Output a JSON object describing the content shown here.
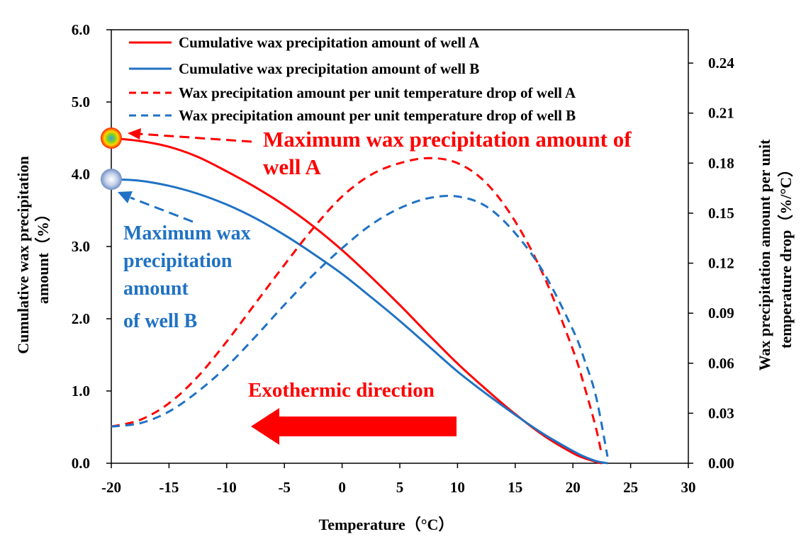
{
  "chart_data": {
    "type": "line",
    "x_axis": {
      "label": "Temperature（°C）",
      "range": [
        -20,
        30
      ],
      "ticks": [
        -20,
        -15,
        -10,
        -5,
        0,
        5,
        10,
        15,
        20,
        25,
        30
      ]
    },
    "y_left": {
      "label_line1": "Cumulative wax precipitation",
      "label_line2": "amount（%）",
      "range": [
        0,
        6
      ],
      "ticks": [
        0,
        1,
        2,
        3,
        4,
        5,
        6
      ],
      "tick_labels": [
        "0.0",
        "1.0",
        "2.0",
        "3.0",
        "4.0",
        "5.0",
        "6.0"
      ]
    },
    "y_right": {
      "label_line1": "Wax precipitation amount per unit",
      "label_line2": "temperature drop（%/°C）",
      "range": [
        0,
        0.26
      ],
      "ticks": [
        0,
        0.03,
        0.06,
        0.09,
        0.12,
        0.15,
        0.18,
        0.21,
        0.24
      ],
      "tick_labels": [
        "0.00",
        "0.03",
        "0.06",
        "0.09",
        "0.12",
        "0.15",
        "0.18",
        "0.21",
        "0.24"
      ]
    },
    "series": [
      {
        "name": "Cumulative wax precipitation amount of well A",
        "axis": "left",
        "style": "solid",
        "color": "#ff0000",
        "x": [
          -20,
          -17.5,
          -15,
          -12.5,
          -10,
          -7.5,
          -5,
          -2.5,
          0,
          2.5,
          5,
          7.5,
          10,
          12.5,
          15,
          17.5,
          20,
          21,
          22,
          22.5
        ],
        "y": [
          4.5,
          4.46,
          4.38,
          4.24,
          4.04,
          3.82,
          3.57,
          3.28,
          2.95,
          2.58,
          2.19,
          1.78,
          1.38,
          1.02,
          0.68,
          0.38,
          0.14,
          0.07,
          0.02,
          0.0
        ]
      },
      {
        "name": "Cumulative wax precipitation amount of well B",
        "axis": "left",
        "style": "solid",
        "color": "#1f72c4",
        "x": [
          -20,
          -17.5,
          -15,
          -12.5,
          -10,
          -7.5,
          -5,
          -2.5,
          0,
          2.5,
          5,
          7.5,
          10,
          12.5,
          15,
          17.5,
          20,
          21,
          22,
          23
        ],
        "y": [
          3.93,
          3.91,
          3.84,
          3.73,
          3.58,
          3.39,
          3.16,
          2.9,
          2.62,
          2.3,
          1.97,
          1.62,
          1.27,
          0.96,
          0.67,
          0.4,
          0.17,
          0.09,
          0.03,
          0.0
        ]
      },
      {
        "name": "Wax precipitation amount per unit temperature drop of well A",
        "axis": "right",
        "style": "dashed",
        "color": "#ff0000",
        "x": [
          -20,
          -17.5,
          -15,
          -12.5,
          -10,
          -7.5,
          -5,
          -2.5,
          0,
          2.5,
          5,
          7.5,
          10,
          12.5,
          15,
          17.5,
          20,
          21,
          22,
          22.5
        ],
        "y": [
          0.022,
          0.026,
          0.036,
          0.052,
          0.073,
          0.096,
          0.119,
          0.141,
          0.16,
          0.173,
          0.18,
          0.183,
          0.18,
          0.168,
          0.145,
          0.112,
          0.068,
          0.046,
          0.021,
          0.005
        ]
      },
      {
        "name": "Wax precipitation amount per unit temperature drop of well B",
        "axis": "right",
        "style": "dashed",
        "color": "#1f72c4",
        "x": [
          -20,
          -17.5,
          -15,
          -12.5,
          -10,
          -7.5,
          -5,
          -2.5,
          0,
          2.5,
          5,
          7.5,
          10,
          12.5,
          15,
          17.5,
          20,
          21,
          22,
          23
        ],
        "y": [
          0.022,
          0.024,
          0.031,
          0.043,
          0.058,
          0.076,
          0.095,
          0.113,
          0.129,
          0.143,
          0.153,
          0.159,
          0.16,
          0.154,
          0.138,
          0.114,
          0.08,
          0.062,
          0.04,
          0.004
        ]
      }
    ],
    "markers": [
      {
        "series": "A",
        "x": -20,
        "y": 4.5
      },
      {
        "series": "B",
        "x": -20,
        "y": 3.93
      }
    ],
    "annotations": {
      "well_a_line1": "Maximum wax precipitation amount of",
      "well_a_line2": "well A",
      "well_b_line1": "Maximum wax",
      "well_b_line2": "precipitation",
      "well_b_line3": "amount",
      "well_b_line4": "of well B",
      "exothermic": "Exothermic direction"
    },
    "legend_position": "top",
    "colors": {
      "well_a": "#ff0000",
      "well_b": "#1f72c4"
    }
  }
}
